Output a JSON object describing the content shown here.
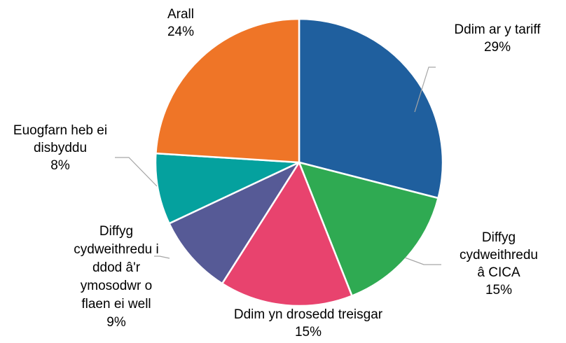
{
  "chart_data": {
    "type": "pie",
    "categories": [
      "Ddim ar y tariff",
      "Diffyg cydweithredu â CICA",
      "Ddim yn drosedd treisgar",
      "Diffyg cydweithredu i ddod â'r ymosodwr o flaen ei well",
      "Euogfarn heb ei disbyddu",
      "Arall"
    ],
    "values": [
      29,
      15,
      15,
      9,
      8,
      24
    ],
    "value_labels": [
      "29%",
      "15%",
      "15%",
      "9%",
      "8%",
      "24%"
    ],
    "colors": [
      "#1f5f9e",
      "#2faa52",
      "#e8436e",
      "#565a96",
      "#05a19e",
      "#ef7527"
    ]
  }
}
